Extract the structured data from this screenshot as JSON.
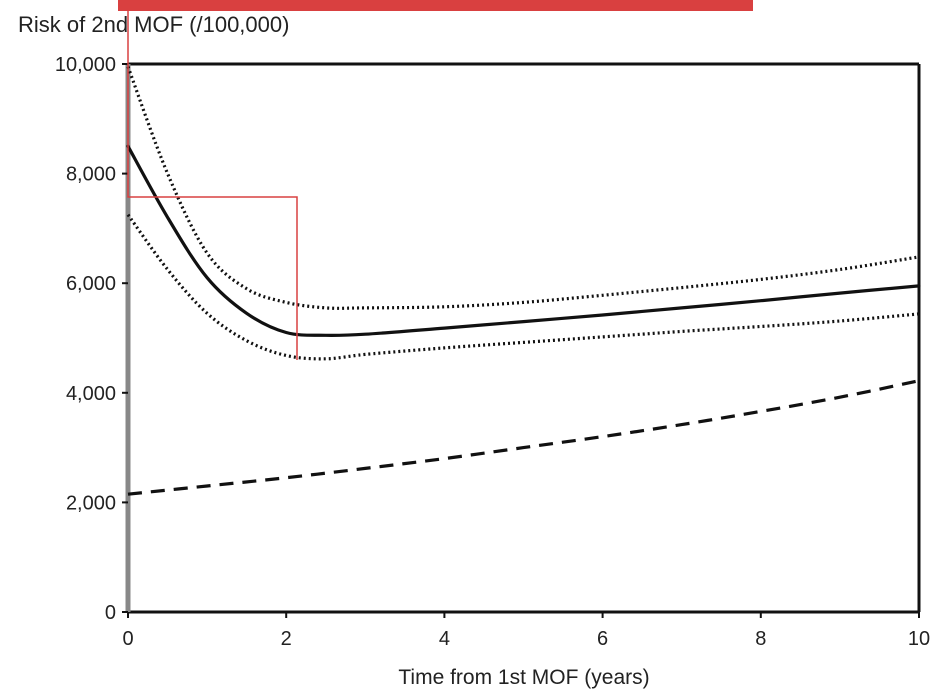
{
  "colors": {
    "line": "#111111",
    "banner": "#d94040",
    "highlight": "#d94040",
    "text": "#222222"
  },
  "chart_data": {
    "type": "line",
    "title": "Risk of 2nd MOF (/100,000)",
    "xlabel": "Time from 1st MOF (years)",
    "ylabel": "",
    "xlim": [
      0,
      10
    ],
    "ylim": [
      0,
      10000
    ],
    "xticks": [
      0,
      2,
      4,
      6,
      8,
      10
    ],
    "yticks": [
      0,
      2000,
      4000,
      6000,
      8000,
      10000
    ],
    "xtick_labels": [
      "0",
      "2",
      "4",
      "6",
      "8",
      "10"
    ],
    "ytick_labels": [
      "0",
      "2,000",
      "4,000",
      "6,000",
      "8,000",
      "10,000"
    ],
    "grid": false,
    "legend": "none",
    "series": [
      {
        "style": "solid",
        "x": [
          0,
          0.5,
          1,
          1.5,
          2,
          2.5,
          3,
          4,
          5,
          6,
          7,
          8,
          9,
          10
        ],
        "y": [
          8500,
          7200,
          6100,
          5450,
          5100,
          5050,
          5070,
          5180,
          5300,
          5420,
          5550,
          5680,
          5820,
          5950
        ]
      },
      {
        "style": "dotted",
        "x": [
          0,
          0.5,
          1,
          1.5,
          2,
          2.5,
          3,
          4,
          5,
          6,
          7,
          8,
          9,
          10
        ],
        "y": [
          9950,
          8000,
          6550,
          5900,
          5650,
          5550,
          5550,
          5570,
          5650,
          5780,
          5920,
          6070,
          6250,
          6480
        ]
      },
      {
        "style": "dotted",
        "x": [
          0,
          0.5,
          1,
          1.5,
          2,
          2.5,
          3,
          4,
          5,
          6,
          7,
          8,
          9,
          10
        ],
        "y": [
          7250,
          6250,
          5450,
          4950,
          4680,
          4620,
          4700,
          4820,
          4920,
          5020,
          5120,
          5210,
          5310,
          5440
        ]
      },
      {
        "style": "dashed",
        "x": [
          0,
          1,
          2,
          3,
          4,
          5,
          6,
          7,
          8,
          9,
          10
        ],
        "y": [
          2150,
          2300,
          2450,
          2620,
          2800,
          3000,
          3200,
          3420,
          3660,
          3920,
          4220
        ]
      }
    ]
  }
}
